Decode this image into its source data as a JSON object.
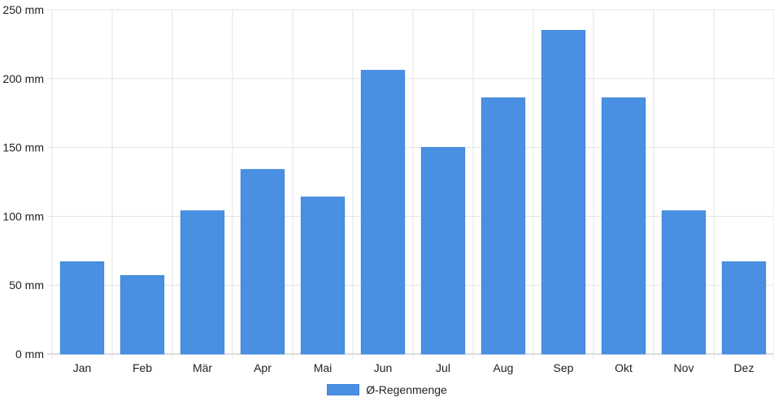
{
  "chart_data": {
    "type": "bar",
    "categories": [
      "Jan",
      "Feb",
      "Mär",
      "Apr",
      "Mai",
      "Jun",
      "Jul",
      "Aug",
      "Sep",
      "Okt",
      "Nov",
      "Dez"
    ],
    "series": [
      {
        "name": "Ø-Regenmenge",
        "values": [
          67,
          57,
          104,
          134,
          114,
          206,
          150,
          186,
          235,
          186,
          104,
          67
        ],
        "color": "#4a90e2"
      }
    ],
    "y_ticks": [
      "0 mm",
      "50 mm",
      "100 mm",
      "150 mm",
      "200 mm",
      "250 mm"
    ],
    "ylim": [
      0,
      250
    ],
    "y_unit": "mm",
    "grid": true,
    "legend_position": "bottom"
  },
  "legend": {
    "label": "Ø-Regenmenge"
  }
}
